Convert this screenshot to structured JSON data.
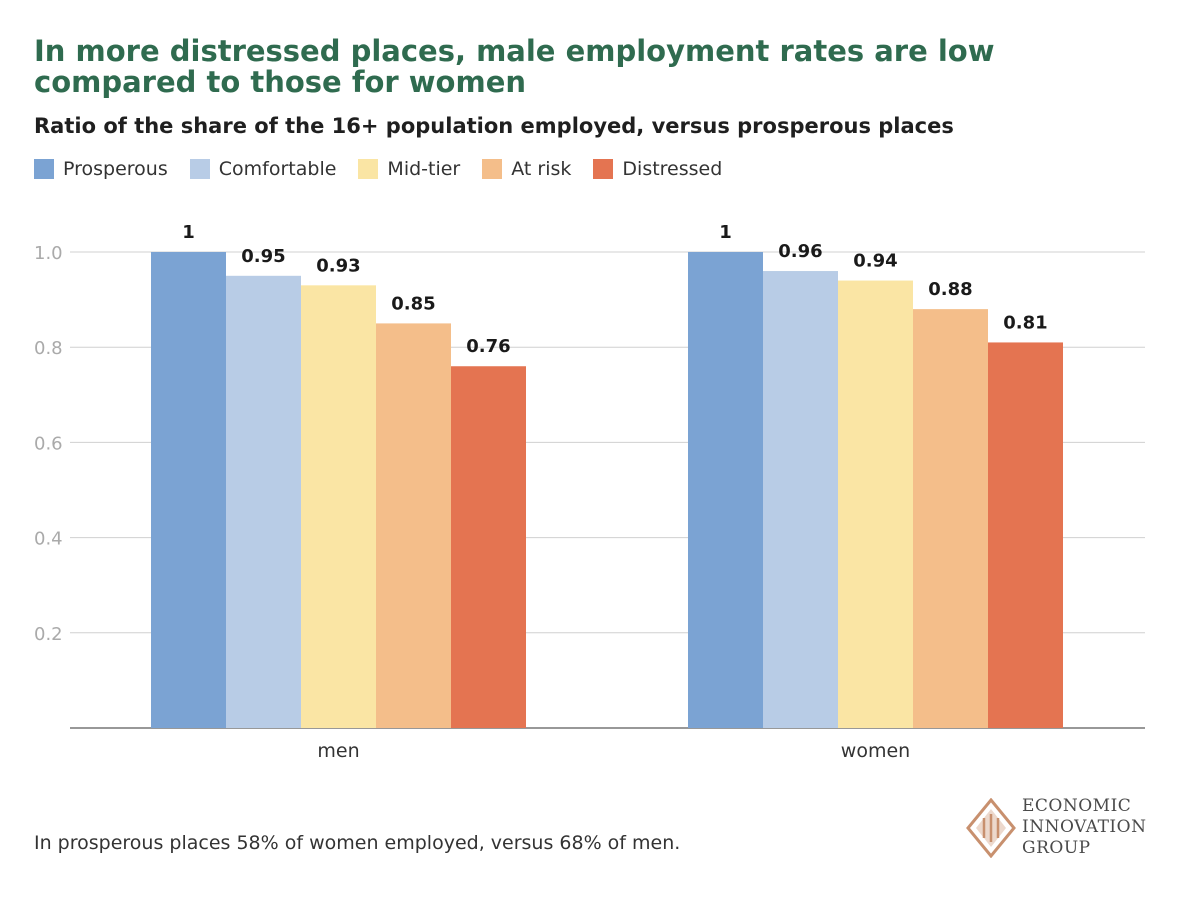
{
  "title": "In more distressed places, male employment rates are low compared to those for women",
  "subtitle": "Ratio of the share of the 16+ population employed, versus prosperous places",
  "legend": [
    {
      "label": "Prosperous",
      "color": "#7ba3d3"
    },
    {
      "label": "Comfortable",
      "color": "#b8cce6"
    },
    {
      "label": "Mid-tier",
      "color": "#fae5a4"
    },
    {
      "label": "At risk",
      "color": "#f4be8a"
    },
    {
      "label": "Distressed",
      "color": "#e47451"
    }
  ],
  "chart_data": {
    "type": "bar",
    "title": "In more distressed places, male employment rates are low compared to those for women",
    "subtitle": "Ratio of the share of the 16+ population employed, versus prosperous places",
    "categories": [
      "men",
      "women"
    ],
    "series": [
      {
        "name": "Prosperous",
        "color": "#7ba3d3",
        "values": [
          1,
          1
        ],
        "labels": [
          "1",
          "1"
        ]
      },
      {
        "name": "Comfortable",
        "color": "#b8cce6",
        "values": [
          0.95,
          0.96
        ],
        "labels": [
          "0.95",
          "0.96"
        ]
      },
      {
        "name": "Mid-tier",
        "color": "#fae5a4",
        "values": [
          0.93,
          0.94
        ],
        "labels": [
          "0.93",
          "0.94"
        ]
      },
      {
        "name": "At risk",
        "color": "#f4be8a",
        "values": [
          0.85,
          0.88
        ],
        "labels": [
          "0.85",
          "0.88"
        ]
      },
      {
        "name": "Distressed",
        "color": "#e47451",
        "values": [
          0.76,
          0.81
        ],
        "labels": [
          "0.76",
          "0.81"
        ]
      }
    ],
    "yticks": [
      0.2,
      0.4,
      0.6,
      0.8,
      1.0
    ],
    "ytick_labels": [
      "0.2",
      "0.4",
      "0.6",
      "0.8",
      "1.0"
    ],
    "ylim": [
      0,
      1.0
    ],
    "xlabel": "",
    "ylabel": "",
    "grid": true,
    "legend_position": "top-left"
  },
  "note": "In prosperous places 58% of women employed, versus 68% of men.",
  "logo": {
    "line1": "ECONOMIC",
    "line2": "INNOVATION",
    "line3": "GROUP",
    "color": "#c8906e"
  }
}
